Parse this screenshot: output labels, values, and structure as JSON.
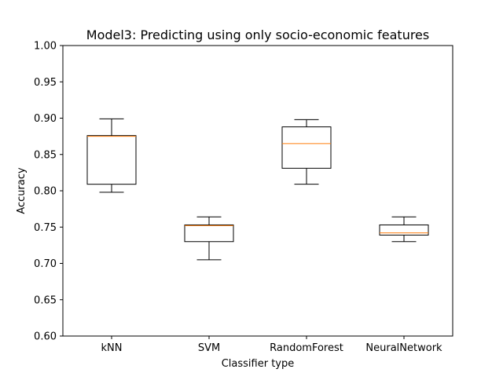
{
  "chart_data": {
    "type": "box",
    "title": "Model3: Predicting using only socio-economic features",
    "xlabel": "Classifier type",
    "ylabel": "Accuracy",
    "ylim": [
      0.6,
      1.0
    ],
    "yticks": [
      "0.60",
      "0.65",
      "0.70",
      "0.75",
      "0.80",
      "0.85",
      "0.90",
      "0.95",
      "1.00"
    ],
    "categories": [
      "kNN",
      "SVM",
      "RandomForest",
      "NeuralNetwork"
    ],
    "boxes": [
      {
        "name": "kNN",
        "whisker_low": 0.798,
        "q1": 0.809,
        "median": 0.875,
        "q3": 0.876,
        "whisker_high": 0.899
      },
      {
        "name": "SVM",
        "whisker_low": 0.705,
        "q1": 0.73,
        "median": 0.752,
        "q3": 0.753,
        "whisker_high": 0.764
      },
      {
        "name": "RandomForest",
        "whisker_low": 0.809,
        "q1": 0.831,
        "median": 0.865,
        "q3": 0.888,
        "whisker_high": 0.898
      },
      {
        "name": "NeuralNetwork",
        "whisker_low": 0.73,
        "q1": 0.739,
        "median": 0.742,
        "q3": 0.753,
        "whisker_high": 0.764
      }
    ],
    "grid": false,
    "colors": {
      "box": "#000000",
      "median": "#ff7f0e"
    }
  }
}
